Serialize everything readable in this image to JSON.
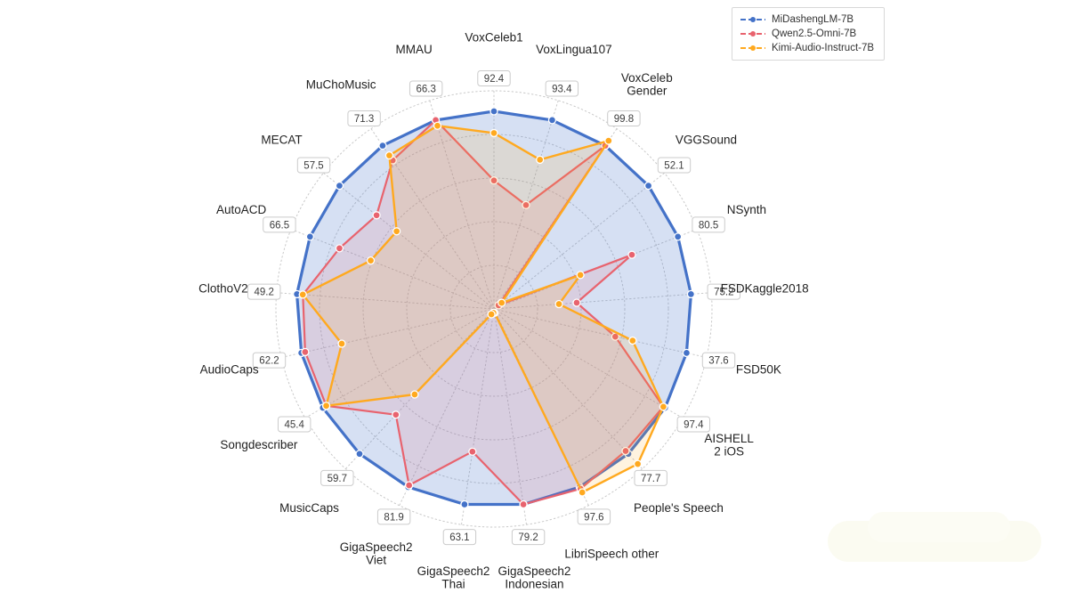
{
  "legend": {
    "items": [
      {
        "label": "MiDashengLM-7B",
        "color": "#4472C8"
      },
      {
        "label": "Qwen2.5-Omni-7B",
        "color": "#E8636E"
      },
      {
        "label": "Kimi-Audio-Instruct-7B",
        "color": "#FFA91F"
      }
    ]
  },
  "chart_data": {
    "type": "radar",
    "title": "",
    "categories": [
      "VoxCeleb1",
      "VoxLingua107",
      "VoxCeleb Gender",
      "VGGSound",
      "NSynth",
      "FSDKaggle2018",
      "FSD50K",
      "AISHELL 2 iOS",
      "People's Speech",
      "LibriSpeech other",
      "GigaSpeech2 Indonesian",
      "GigaSpeech2 Thai",
      "GigaSpeech2 Viet",
      "MusicCaps",
      "Songdescriber",
      "AudioCaps",
      "ClothoV2",
      "AutoACD",
      "MECAT",
      "MuChoMusic",
      "MMAU"
    ],
    "category_label_lines": [
      [
        "VoxCeleb1"
      ],
      [
        "VoxLingua107"
      ],
      [
        "VoxCeleb",
        "Gender"
      ],
      [
        "VGGSound"
      ],
      [
        "NSynth"
      ],
      [
        "FSDKaggle2018"
      ],
      [
        "FSD50K"
      ],
      [
        "AISHELL",
        "2 iOS"
      ],
      [
        "People's Speech"
      ],
      [
        "LibriSpeech other"
      ],
      [
        "GigaSpeech2",
        "Indonesian"
      ],
      [
        "GigaSpeech2",
        "Thai"
      ],
      [
        "GigaSpeech2",
        "Viet"
      ],
      [
        "MusicCaps"
      ],
      [
        "Songdescriber"
      ],
      [
        "AudioCaps"
      ],
      [
        "ClothoV2"
      ],
      [
        "AutoACD"
      ],
      [
        "MECAT"
      ],
      [
        "MuChoMusic"
      ],
      [
        "MMAU"
      ]
    ],
    "annotated_values": [
      "92.4",
      "93.4",
      "99.8",
      "52.1",
      "80.5",
      "75.2",
      "37.6",
      "97.4",
      "77.7",
      "97.6",
      "79.2",
      "63.1",
      "81.9",
      "59.7",
      "45.4",
      "62.2",
      "49.2",
      "66.5",
      "57.5",
      "71.3",
      "66.3"
    ],
    "series": [
      {
        "name": "MiDashengLM-7B",
        "color": "#4472C8",
        "fill": "rgba(68,114,200,0.22)",
        "relative_radius": [
          1.0,
          1.0,
          1.0,
          1.0,
          1.0,
          1.0,
          1.0,
          1.0,
          1.0,
          1.0,
          1.0,
          1.0,
          1.0,
          1.0,
          1.0,
          1.0,
          1.0,
          1.0,
          1.0,
          1.0,
          1.0
        ]
      },
      {
        "name": "Qwen2.5-Omni-7B",
        "color": "#E8636E",
        "fill": "rgba(232,99,110,0.14)",
        "relative_radius": [
          0.65,
          0.55,
          1.0,
          0.03,
          0.75,
          0.42,
          0.63,
          0.99,
          0.98,
          1.01,
          1.0,
          0.73,
          0.99,
          0.73,
          0.98,
          0.98,
          0.97,
          0.84,
          0.76,
          0.91,
          1.0
        ]
      },
      {
        "name": "Kimi-Audio-Instruct-7B",
        "color": "#FFA91F",
        "fill": "rgba(255,169,31,0.14)",
        "relative_radius": [
          0.89,
          0.79,
          1.03,
          0.05,
          0.47,
          0.33,
          0.72,
          0.99,
          1.07,
          1.03,
          0.02,
          0.02,
          0.03,
          0.59,
          0.98,
          0.79,
          0.97,
          0.67,
          0.63,
          0.94,
          0.97
        ]
      }
    ],
    "layout_hints": {
      "grid": "dotted concentric rings and spokes",
      "legend_position": "top-right",
      "value_badges": "white rounded boxes just outside outer ring, one per axis",
      "radial_ticks_shown": false
    },
    "grid_color": "#c9c9c9",
    "label_color": "#222222",
    "badge_text_color": "#3c3c3c",
    "badge_border_color": "#cbcbcb"
  }
}
